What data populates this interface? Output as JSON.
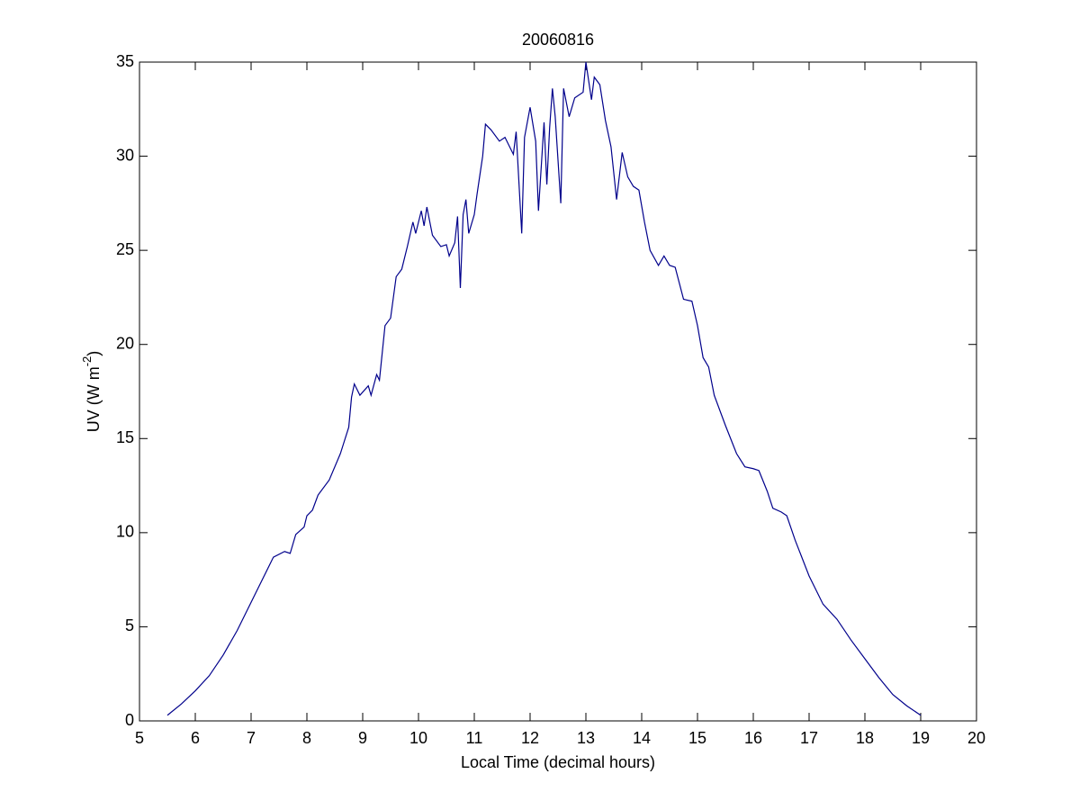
{
  "chart_data": {
    "type": "line",
    "title": "20060816",
    "xlabel": "Local Time (decimal hours)",
    "ylabel": {
      "text": "UV (W m",
      "sup": "-2",
      "end": ")"
    },
    "xlim": [
      5,
      20
    ],
    "xticks": [
      5,
      6,
      7,
      8,
      9,
      10,
      11,
      12,
      13,
      14,
      15,
      16,
      17,
      18,
      19,
      20
    ],
    "ylim": [
      0,
      35
    ],
    "yticks": [
      0,
      5,
      10,
      15,
      20,
      25,
      30,
      35
    ],
    "grid": false,
    "x": [
      5.5,
      5.75,
      6.0,
      6.25,
      6.5,
      6.75,
      7.0,
      7.2,
      7.4,
      7.6,
      7.7,
      7.8,
      7.95,
      8.0,
      8.1,
      8.2,
      8.4,
      8.6,
      8.75,
      8.8,
      8.85,
      8.95,
      9.1,
      9.15,
      9.25,
      9.3,
      9.4,
      9.5,
      9.6,
      9.7,
      9.8,
      9.9,
      9.95,
      10.05,
      10.1,
      10.15,
      10.25,
      10.4,
      10.5,
      10.55,
      10.65,
      10.7,
      10.75,
      10.8,
      10.85,
      10.9,
      11.0,
      11.05,
      11.1,
      11.15,
      11.2,
      11.3,
      11.45,
      11.55,
      11.7,
      11.75,
      11.85,
      11.9,
      12.0,
      12.1,
      12.15,
      12.25,
      12.3,
      12.35,
      12.4,
      12.45,
      12.55,
      12.6,
      12.7,
      12.8,
      12.95,
      13.0,
      13.1,
      13.15,
      13.25,
      13.35,
      13.45,
      13.55,
      13.65,
      13.75,
      13.85,
      13.95,
      14.05,
      14.15,
      14.3,
      14.4,
      14.5,
      14.6,
      14.75,
      14.9,
      15.0,
      15.1,
      15.2,
      15.3,
      15.5,
      15.7,
      15.85,
      16.0,
      16.1,
      16.25,
      16.35,
      16.5,
      16.6,
      16.75,
      17.0,
      17.25,
      17.5,
      17.75,
      18.0,
      18.25,
      18.5,
      18.75,
      19.0
    ],
    "series": [
      {
        "color": "#00008b",
        "values": [
          0.3,
          0.9,
          1.6,
          2.4,
          3.5,
          4.8,
          6.3,
          7.5,
          8.7,
          9.0,
          8.9,
          9.9,
          10.3,
          10.9,
          11.2,
          12.0,
          12.8,
          14.2,
          15.6,
          17.2,
          17.9,
          17.3,
          17.8,
          17.3,
          18.4,
          18.1,
          21.0,
          21.4,
          23.6,
          24.0,
          25.2,
          26.5,
          25.9,
          27.1,
          26.3,
          27.3,
          25.8,
          25.2,
          25.3,
          24.7,
          25.4,
          26.8,
          23.0,
          26.9,
          27.7,
          25.9,
          26.9,
          28.0,
          29.0,
          30.0,
          31.7,
          31.4,
          30.8,
          31.0,
          30.1,
          31.3,
          25.9,
          31.0,
          32.6,
          30.8,
          27.1,
          31.8,
          28.5,
          31.5,
          33.6,
          32.1,
          27.5,
          33.6,
          32.1,
          33.1,
          33.4,
          35.0,
          33.0,
          34.2,
          33.8,
          31.9,
          30.5,
          27.7,
          30.2,
          28.9,
          28.4,
          28.2,
          26.5,
          25.0,
          24.2,
          24.7,
          24.2,
          24.1,
          22.4,
          22.3,
          21.0,
          19.3,
          18.8,
          17.3,
          15.7,
          14.2,
          13.5,
          13.4,
          13.3,
          12.2,
          11.3,
          11.1,
          10.9,
          9.6,
          7.7,
          6.2,
          5.4,
          4.3,
          3.3,
          2.3,
          1.4,
          0.8,
          0.3
        ]
      }
    ]
  }
}
